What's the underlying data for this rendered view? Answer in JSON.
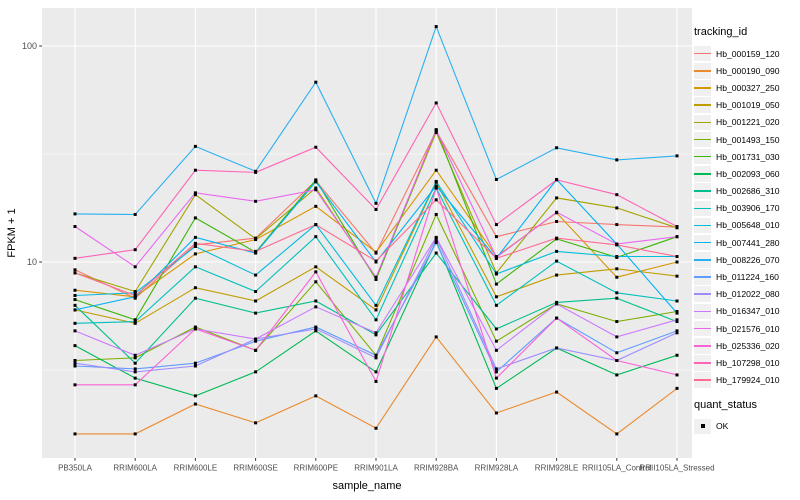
{
  "figure": {
    "y_axis": {
      "title": "FPKM + 1",
      "tick_labels": [
        "100",
        "10"
      ],
      "scale": "log10"
    },
    "x_axis": {
      "title": "sample_name"
    },
    "legend": {
      "tracking_title": "tracking_id",
      "quant_title": "quant_status",
      "quant_ok_label": "OK"
    },
    "colors": {
      "panel_background": "#EBEBEB",
      "gridline": "#FFFFFF",
      "tick_text": "#4D4D4D",
      "axis_title_text": "#000000",
      "point": "#000000"
    }
  },
  "chart_data": {
    "type": "line",
    "title": "",
    "xlabel": "sample_name",
    "ylabel": "FPKM + 1",
    "y_scale": "log10",
    "ylim": [
      1.24,
      150
    ],
    "y_major_gridlines": [
      10,
      100
    ],
    "y_minor_gridlines": [
      3.162,
      31.62
    ],
    "y_tick_values": [
      10,
      100
    ],
    "legend_position": "right",
    "grid": true,
    "point_marker": {
      "shape": "square",
      "color": "#000000",
      "status_label": "OK"
    },
    "categories": [
      "PB350LA",
      "RRIM600LA",
      "RRIM600LE",
      "RRIM600SE",
      "RRIM600PE",
      "RRIM901LA",
      "RRIM928BA",
      "RRIM928LA",
      "RRIM928LE",
      "RRII105LA_Control",
      "RRII105LA_Stressed"
    ],
    "series": [
      {
        "name": "Hb_000159_120",
        "color": "#F8766D",
        "values": [
          9.2,
          6.8,
          12.0,
          12.9,
          23.8,
          11.0,
          40.5,
          13.1,
          15.4,
          14.9,
          14.5
        ]
      },
      {
        "name": "Hb_000190_090",
        "color": "#E98A2C",
        "values": [
          1.6,
          1.6,
          2.2,
          1.8,
          2.4,
          1.7,
          4.5,
          2.0,
          2.5,
          1.6,
          2.6
        ]
      },
      {
        "name": "Hb_000327_250",
        "color": "#D79500",
        "values": [
          7.4,
          6.9,
          10.9,
          12.7,
          18.1,
          11.1,
          26.6,
          10.6,
          16.9,
          8.5,
          10.0
        ]
      },
      {
        "name": "Hb_001019_050",
        "color": "#BF9D00",
        "values": [
          6.0,
          5.2,
          7.6,
          6.6,
          9.5,
          6.0,
          23.4,
          6.9,
          8.7,
          9.3,
          8.6
        ]
      },
      {
        "name": "Hb_001221_020",
        "color": "#A2A400",
        "values": [
          8.9,
          7.3,
          20.5,
          12.8,
          22.0,
          8.4,
          39.8,
          8.9,
          19.8,
          17.8,
          14.4
        ]
      },
      {
        "name": "Hb_001493_150",
        "color": "#7CAE00",
        "values": [
          3.5,
          3.6,
          5.0,
          3.9,
          8.1,
          3.7,
          16.6,
          4.3,
          6.4,
          5.3,
          5.9
        ]
      },
      {
        "name": "Hb_001731_030",
        "color": "#3DB508",
        "values": [
          6.7,
          5.4,
          16.0,
          11.1,
          24.0,
          8.3,
          41.0,
          7.9,
          12.8,
          10.5,
          13.1
        ]
      },
      {
        "name": "Hb_002093_060",
        "color": "#00BA55",
        "values": [
          4.1,
          2.9,
          2.4,
          3.1,
          4.8,
          3.1,
          12.5,
          2.6,
          4.0,
          3.0,
          3.7
        ]
      },
      {
        "name": "Hb_002686_310",
        "color": "#00BF8C",
        "values": [
          6.3,
          3.4,
          6.8,
          5.8,
          6.6,
          4.6,
          11.0,
          4.9,
          6.5,
          6.8,
          5.3
        ]
      },
      {
        "name": "Hb_003906_170",
        "color": "#00C0BB",
        "values": [
          5.2,
          5.3,
          9.5,
          7.3,
          13.1,
          5.4,
          22.0,
          6.3,
          10.1,
          7.2,
          6.6
        ]
      },
      {
        "name": "Hb_005648_010",
        "color": "#00BCDC",
        "values": [
          7.0,
          7.2,
          11.8,
          8.7,
          14.9,
          6.3,
          23.6,
          8.8,
          11.2,
          10.6,
          10.6
        ]
      },
      {
        "name": "Hb_007441_280",
        "color": "#00B1F5",
        "values": [
          6.0,
          6.9,
          13.0,
          11.0,
          23.5,
          10.0,
          22.5,
          10.4,
          24.1,
          12.1,
          5.8
        ]
      },
      {
        "name": "Hb_008226_070",
        "color": "#28B0F0",
        "values": [
          16.7,
          16.6,
          34.3,
          26.3,
          68.0,
          18.7,
          123.0,
          24.1,
          33.8,
          29.7,
          31.0
        ]
      },
      {
        "name": "Hb_011224_160",
        "color": "#619CFF",
        "values": [
          3.3,
          3.2,
          3.4,
          4.3,
          5.0,
          3.7,
          12.3,
          3.1,
          5.5,
          3.8,
          4.8
        ]
      },
      {
        "name": "Hb_012022_080",
        "color": "#9C8DFF",
        "values": [
          3.4,
          3.1,
          3.3,
          4.4,
          4.9,
          3.6,
          12.9,
          3.2,
          4.0,
          3.5,
          4.7
        ]
      },
      {
        "name": "Hb_016347_010",
        "color": "#CC79FF",
        "values": [
          4.8,
          3.7,
          4.9,
          4.4,
          6.2,
          4.7,
          13.0,
          3.9,
          6.4,
          4.5,
          5.4
        ]
      },
      {
        "name": "Hb_021576_010",
        "color": "#EA67F0",
        "values": [
          14.6,
          9.5,
          20.9,
          19.1,
          21.6,
          8.5,
          40.8,
          10.5,
          17.0,
          12.1,
          13.1
        ]
      },
      {
        "name": "Hb_025336_020",
        "color": "#FA62D6",
        "values": [
          2.7,
          2.7,
          4.9,
          3.9,
          9.0,
          2.8,
          22.0,
          2.9,
          5.5,
          3.5,
          3.0
        ]
      },
      {
        "name": "Hb_107298_010",
        "color": "#FF63B6",
        "values": [
          10.4,
          11.4,
          26.6,
          26.0,
          34.0,
          17.5,
          54.5,
          14.9,
          24.0,
          20.5,
          14.6
        ]
      },
      {
        "name": "Hb_179924_010",
        "color": "#FF6B92",
        "values": [
          8.9,
          7.0,
          12.2,
          11.2,
          14.9,
          10.1,
          19.4,
          10.4,
          12.9,
          12.0,
          10.6
        ]
      }
    ]
  }
}
